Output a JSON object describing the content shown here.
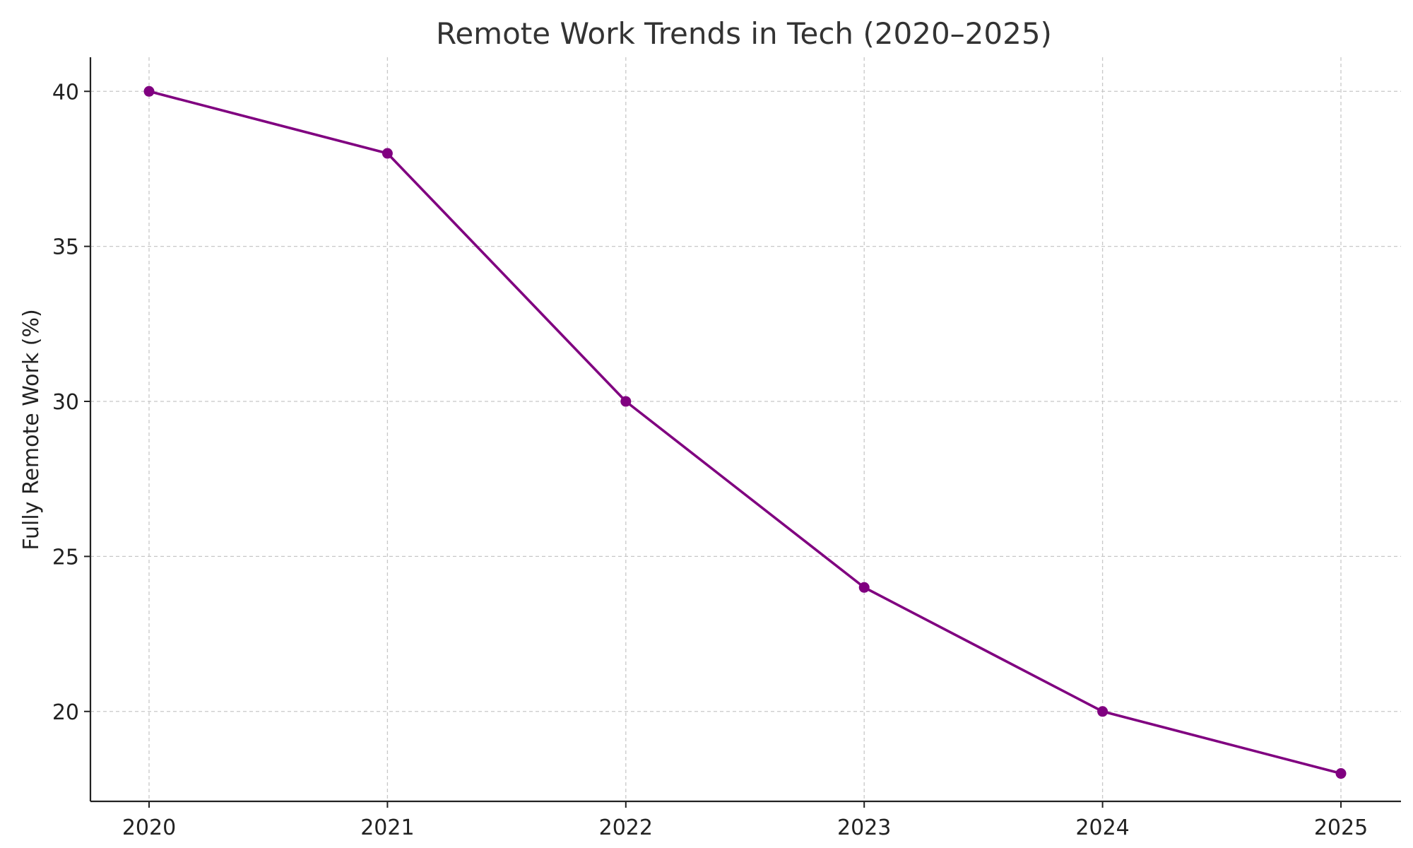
{
  "chart_data": {
    "type": "line",
    "title": "Remote Work Trends in Tech (2020–2025)",
    "xlabel": "",
    "ylabel": "Fully Remote Work (%)",
    "x": [
      "2020",
      "2021",
      "2022",
      "2023",
      "2024",
      "2025"
    ],
    "series": [
      {
        "values": [
          40,
          38,
          30,
          24,
          20,
          18
        ],
        "color": "#800080",
        "marker": "circle"
      }
    ],
    "yticks": [
      20,
      25,
      30,
      35,
      40
    ],
    "ylim": [
      17.1,
      41.1
    ],
    "grid": true,
    "legend": "none"
  }
}
